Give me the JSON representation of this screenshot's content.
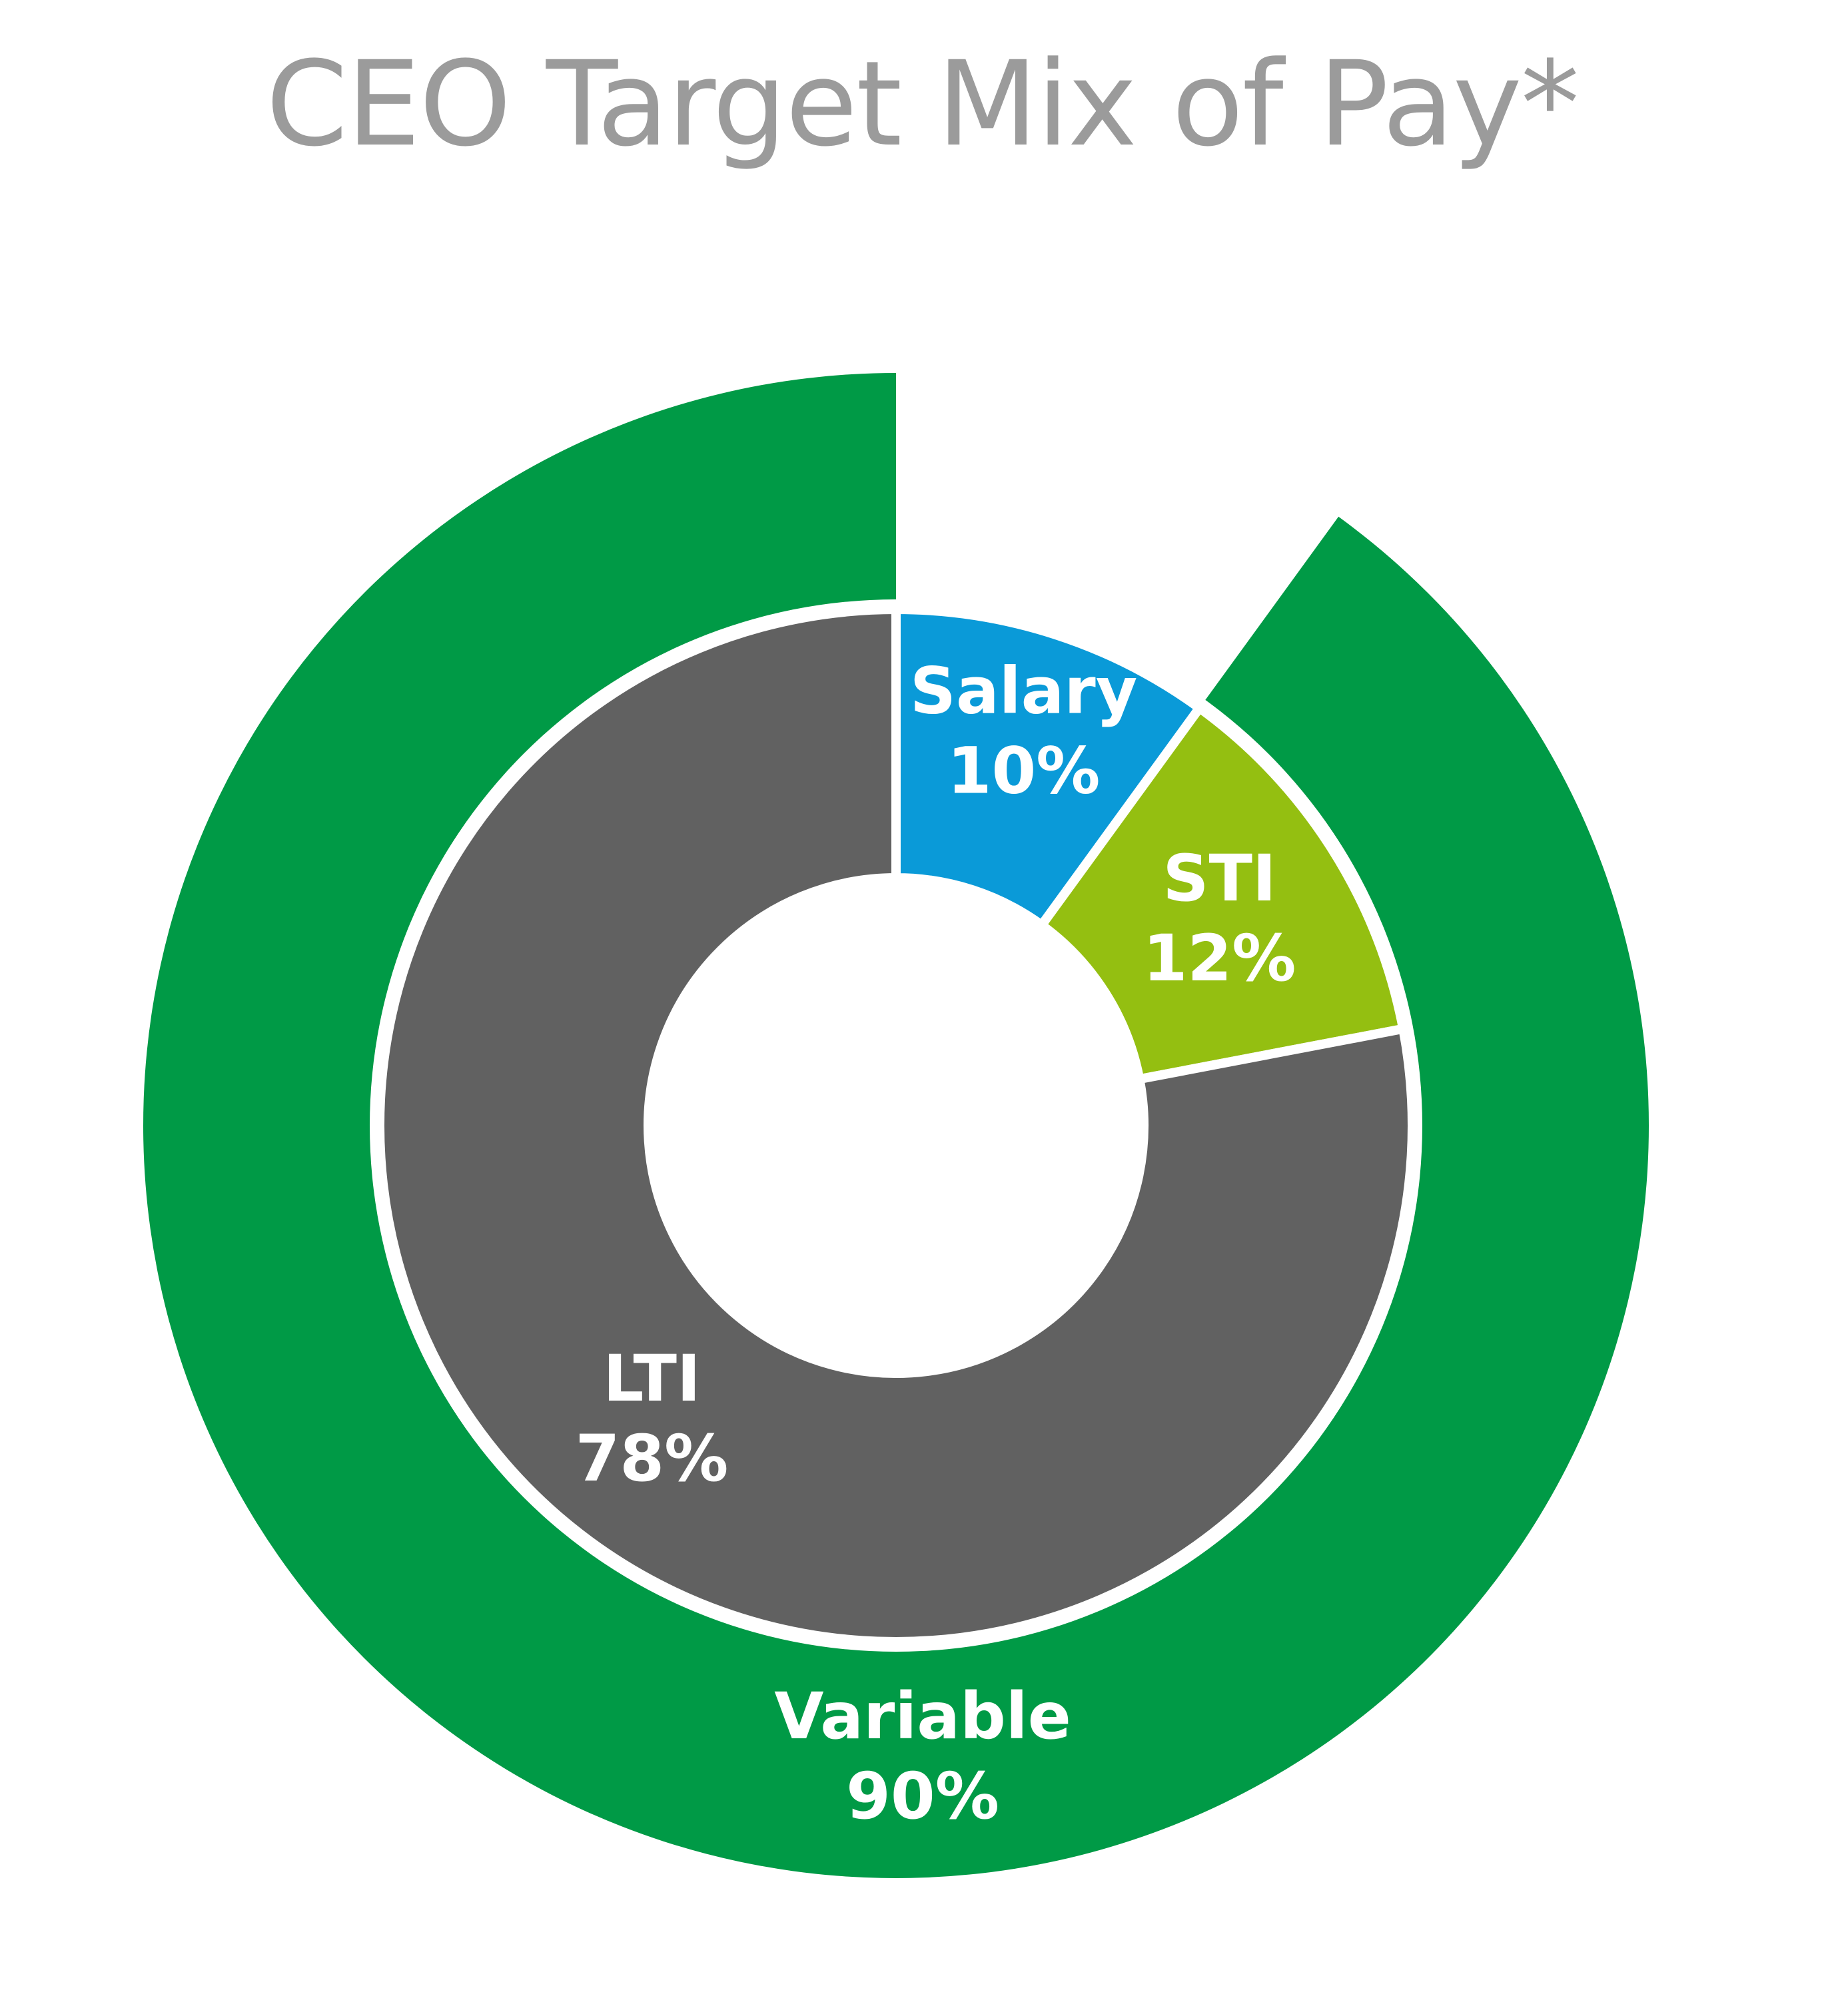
{
  "chart_data": {
    "type": "pie",
    "title": "CEO Target Mix of Pay*",
    "rings": [
      {
        "ring": "inner",
        "slices": [
          {
            "label": "Salary",
            "value": 10,
            "value_label": "10%",
            "color": "#0a9ad8",
            "label_color": "#ffffff"
          },
          {
            "label": "STI",
            "value": 12,
            "value_label": "12%",
            "color": "#94bf11",
            "label_color": "#ffffff"
          },
          {
            "label": "LTI",
            "value": 78,
            "value_label": "78%",
            "color": "#616161",
            "label_color": "#ffffff"
          }
        ]
      },
      {
        "ring": "outer",
        "slices": [
          {
            "label": "Variable",
            "value": 90,
            "value_label": "90%",
            "color": "#009a46",
            "label_color": "#ffffff"
          }
        ]
      }
    ]
  }
}
